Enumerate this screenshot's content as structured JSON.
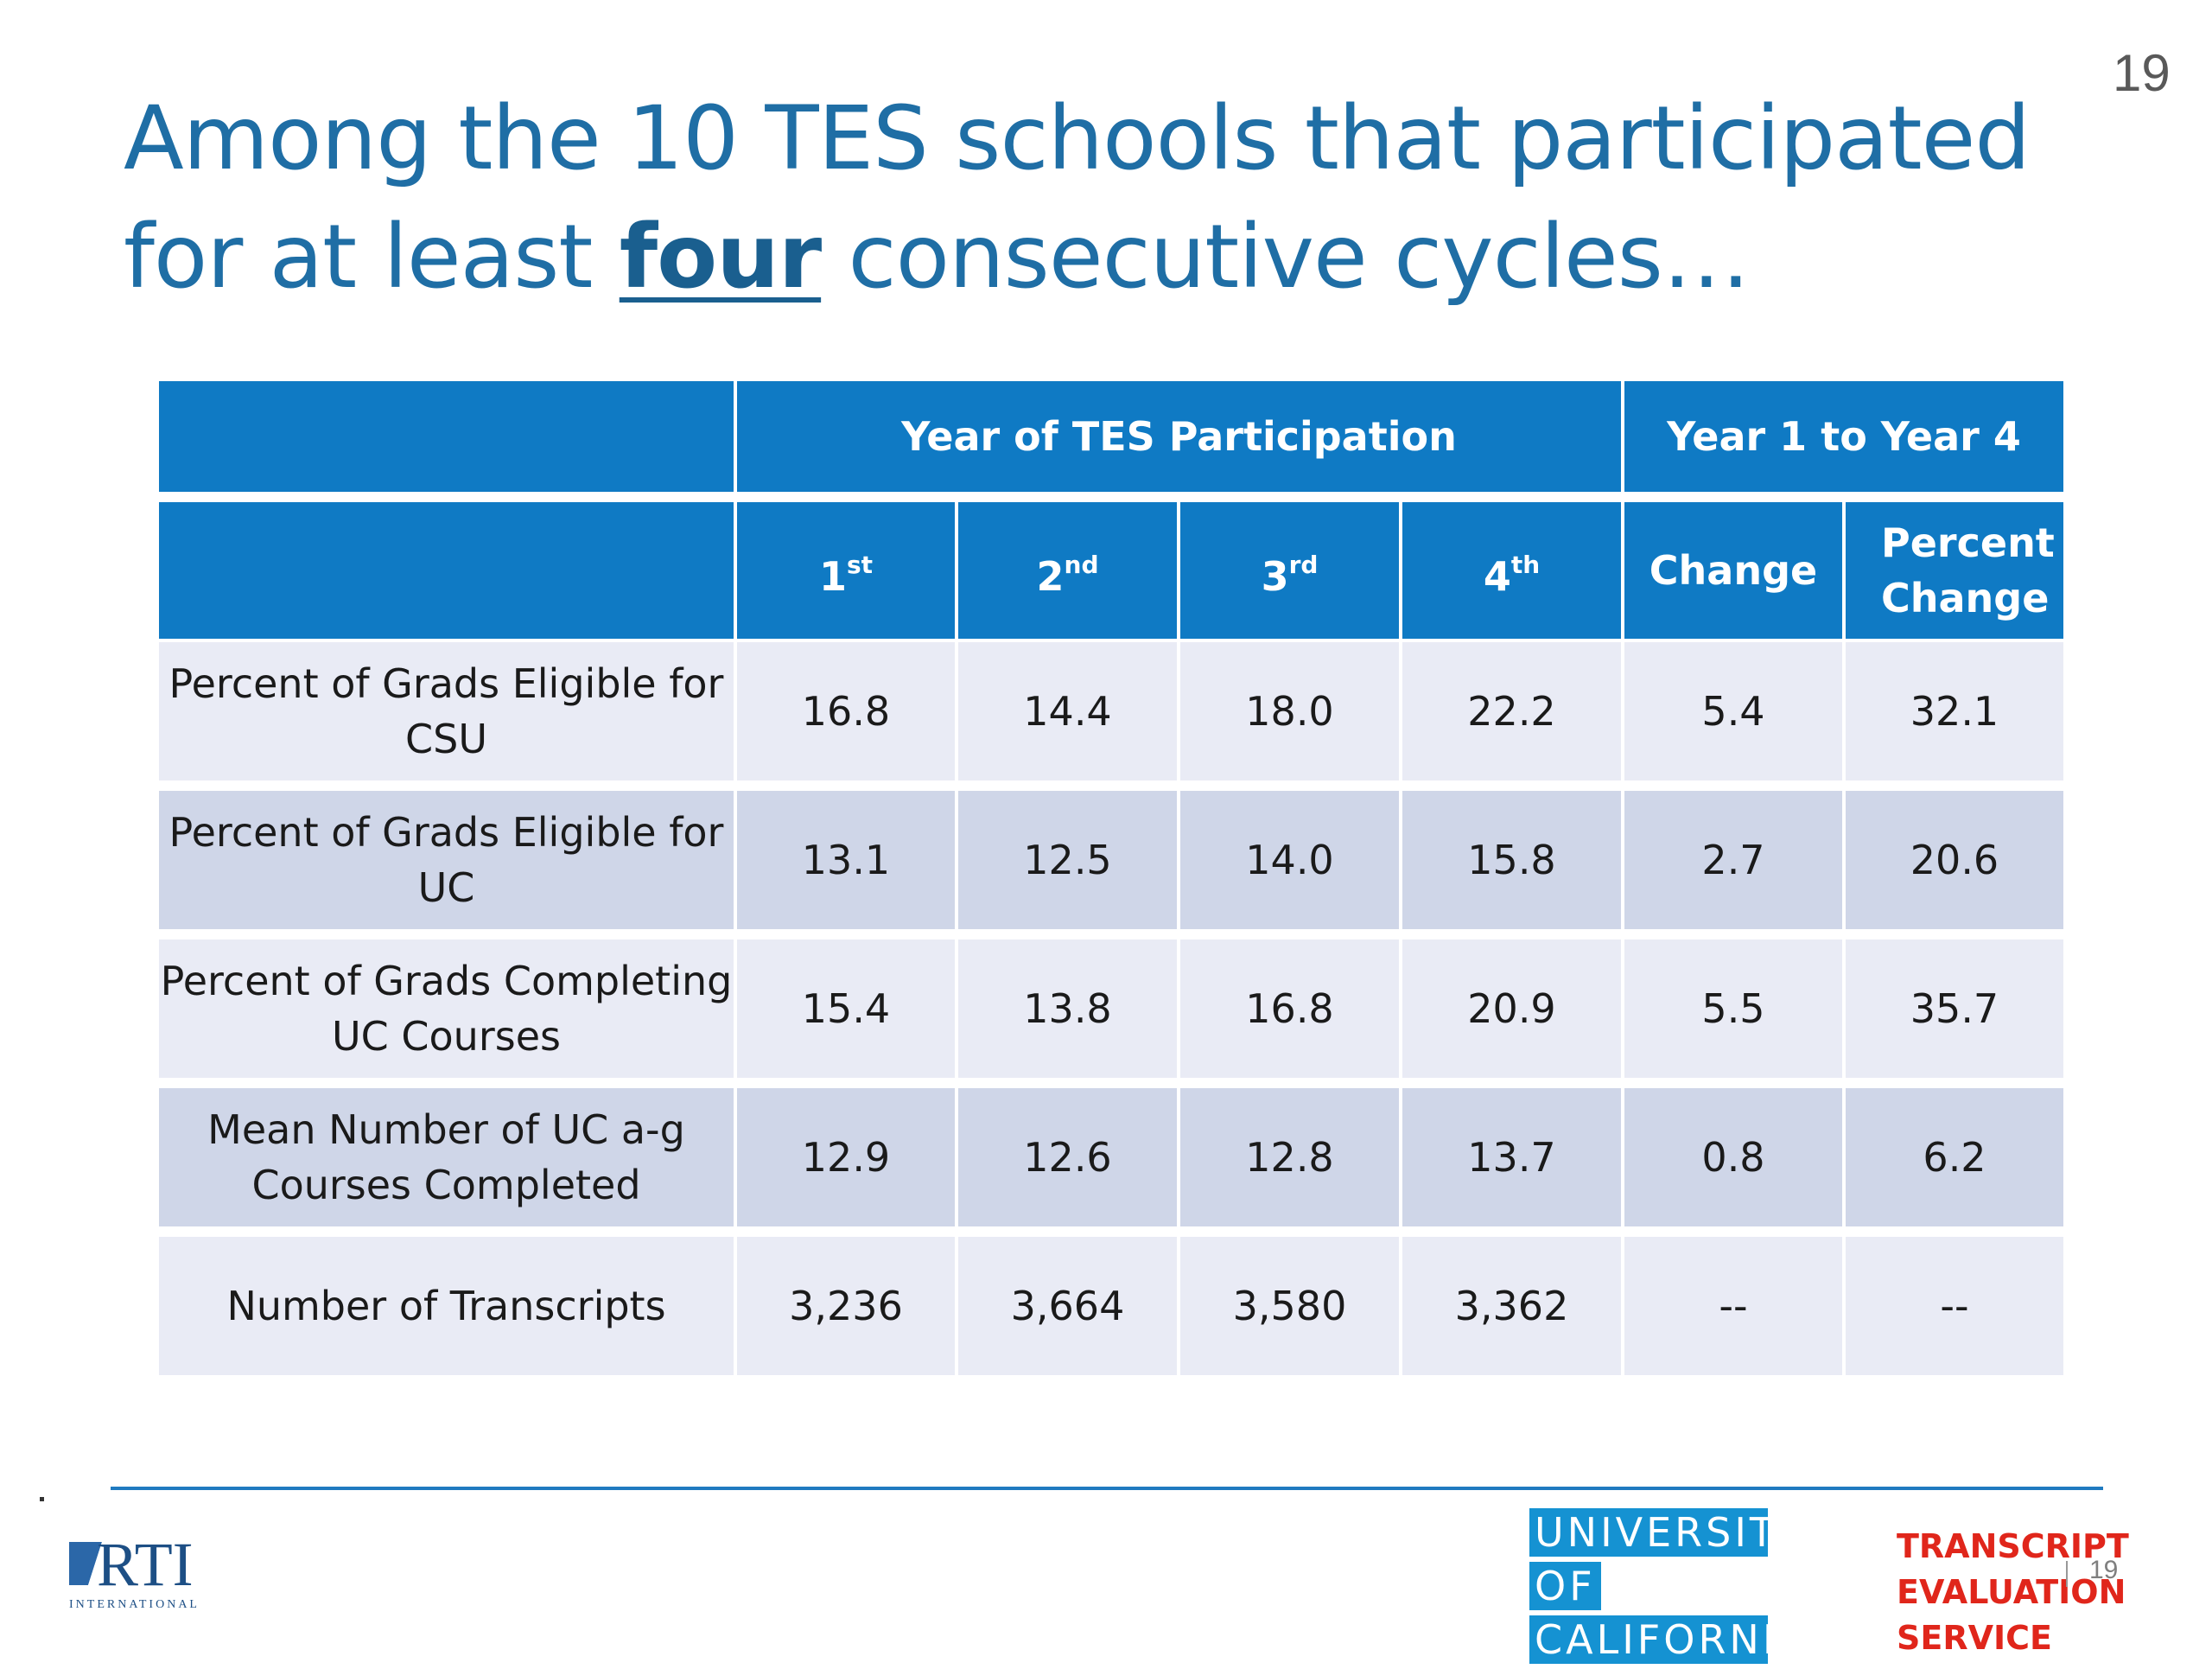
{
  "slide_number": "19",
  "title": {
    "before": "Among the 10 TES schools that participated for at least ",
    "emphasis": "four",
    "after": " consecutive cycles…"
  },
  "table": {
    "group_headers": [
      "Year of TES Participation",
      "Year 1 to Year 4"
    ],
    "columns": [
      {
        "base": "1",
        "sup": "st"
      },
      {
        "base": "2",
        "sup": "nd"
      },
      {
        "base": "3",
        "sup": "rd"
      },
      {
        "base": "4",
        "sup": "th"
      },
      {
        "base": "Change",
        "sup": ""
      },
      {
        "base": "Percent Change",
        "sup": ""
      }
    ],
    "rows": [
      {
        "label": "Percent of Grads Eligible for CSU",
        "values": [
          "16.8",
          "14.4",
          "18.0",
          "22.2",
          "5.4",
          "32.1"
        ]
      },
      {
        "label": "Percent of Grads Eligible for UC",
        "values": [
          "13.1",
          "12.5",
          "14.0",
          "15.8",
          "2.7",
          "20.6"
        ]
      },
      {
        "label": "Percent of Grads Completing UC Courses",
        "values": [
          "15.4",
          "13.8",
          "16.8",
          "20.9",
          "5.5",
          "35.7"
        ]
      },
      {
        "label": "Mean Number of UC a-g Courses Completed",
        "values": [
          "12.9",
          "12.6",
          "12.8",
          "13.7",
          "0.8",
          "6.2"
        ]
      },
      {
        "label": "Number of Transcripts",
        "values": [
          "3,236",
          "3,664",
          "3,580",
          "3,362",
          "--",
          "--"
        ]
      }
    ]
  },
  "footer": {
    "rti_logo": "RTI",
    "rti_subtext": "INTERNATIONAL",
    "uc_logo": [
      "UNIVERSITY",
      "OF",
      "CALIFORNIA"
    ],
    "tes_logo": [
      "TRANSCRIPT",
      "EVALUATION",
      "SERVICE"
    ],
    "slide_number": "19"
  },
  "colors": {
    "title": "#1f6ea5",
    "header": "#0f7ac4",
    "row_light": "#e9ebf5",
    "row_dark": "#cfd6e8",
    "uc_blue": "#1592d2",
    "tes_red": "#e0261b"
  }
}
